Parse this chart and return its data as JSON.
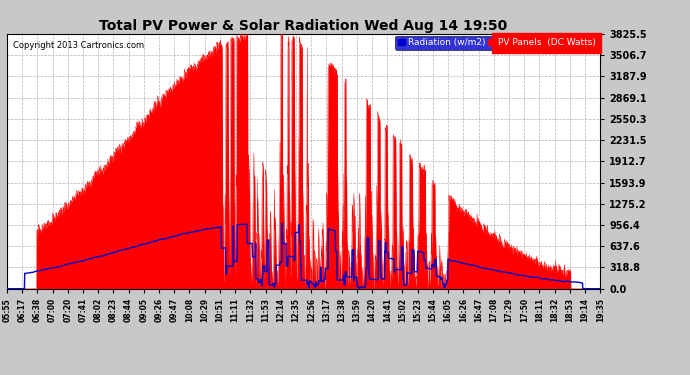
{
  "title": "Total PV Power & Solar Radiation Wed Aug 14 19:50",
  "copyright": "Copyright 2013 Cartronics.com",
  "yticks": [
    0.0,
    318.8,
    637.6,
    956.4,
    1275.2,
    1593.9,
    1912.7,
    2231.5,
    2550.3,
    2869.1,
    3187.9,
    3506.7,
    3825.5
  ],
  "ymax": 3825.5,
  "ymin": 0.0,
  "bg_color": "#c8c8c8",
  "plot_bg_color": "#ffffff",
  "grid_color": "#aaaaaa",
  "pv_color": "#ff0000",
  "radiation_color": "#0000cc",
  "x_tick_labels": [
    "05:55",
    "06:17",
    "06:38",
    "07:00",
    "07:20",
    "07:41",
    "08:02",
    "08:23",
    "08:44",
    "09:05",
    "09:26",
    "09:47",
    "10:08",
    "10:29",
    "10:51",
    "11:11",
    "11:32",
    "11:53",
    "12:14",
    "12:35",
    "12:56",
    "13:17",
    "13:38",
    "13:59",
    "14:20",
    "14:41",
    "15:02",
    "15:23",
    "15:44",
    "16:05",
    "16:26",
    "16:47",
    "17:08",
    "17:29",
    "17:50",
    "18:11",
    "18:32",
    "18:53",
    "19:14",
    "19:35"
  ]
}
